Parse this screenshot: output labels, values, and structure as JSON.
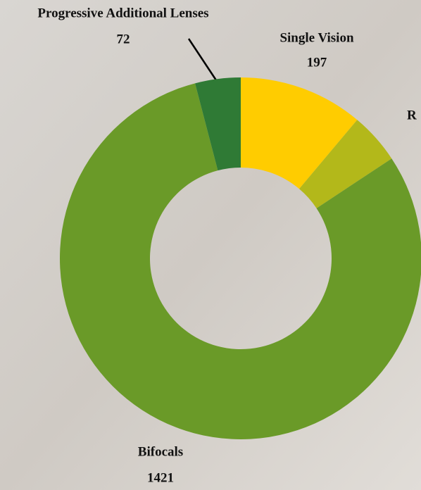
{
  "chart_data": {
    "type": "donut",
    "categories": [
      "Single Vision",
      "R",
      "Bifocals",
      "Progressive Additional Lenses"
    ],
    "values": [
      197,
      81,
      1421,
      72
    ],
    "colors": [
      "#ffcc00",
      "#b3b81a",
      "#6a9a28",
      "#2f7a35"
    ]
  }
}
